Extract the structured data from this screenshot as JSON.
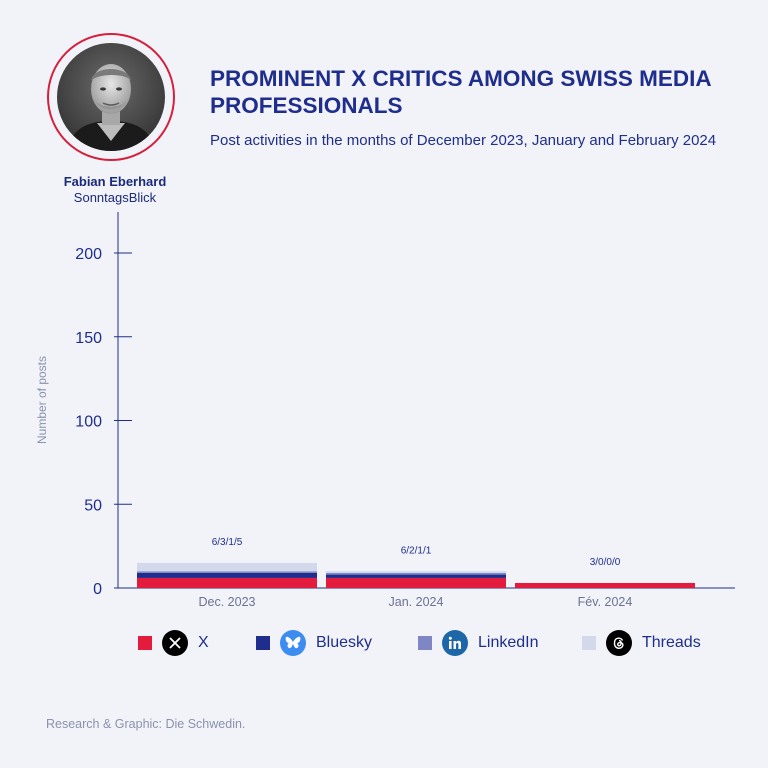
{
  "person": {
    "name": "Fabian Eberhard",
    "outlet": "SonntagsBlick"
  },
  "header": {
    "title": "Prominent X critics among Swiss media professionals",
    "subtitle": "Post activities in the months of December 2023, January and February 2024"
  },
  "chart_data": {
    "type": "bar",
    "stacked": true,
    "categories": [
      "Dec. 2023",
      "Jan. 2024",
      "Fév. 2024"
    ],
    "series": [
      {
        "name": "X",
        "values": [
          6,
          6,
          3
        ],
        "color": "#e31b3c"
      },
      {
        "name": "Bluesky",
        "values": [
          3,
          2,
          0
        ],
        "color": "#1f2e8c"
      },
      {
        "name": "LinkedIn",
        "values": [
          1,
          1,
          0
        ],
        "color": "#7e86c4"
      },
      {
        "name": "Threads",
        "values": [
          5,
          1,
          0
        ],
        "color": "#d4d8eb"
      }
    ],
    "data_labels": [
      "6/3/1/5",
      "6/2/1/1",
      "3/0/0/0"
    ],
    "ylabel": "Number of posts",
    "xlabel": "",
    "ylim": [
      0,
      225
    ],
    "yticks": [
      0,
      50,
      100,
      150,
      200
    ],
    "grid": false,
    "legend_position": "bottom"
  },
  "legend": {
    "items": [
      {
        "label": "X",
        "icon": "x-logo-icon",
        "color": "#e31b3c"
      },
      {
        "label": "Bluesky",
        "icon": "bluesky-butterfly-icon",
        "color": "#1f2e8c"
      },
      {
        "label": "LinkedIn",
        "icon": "linkedin-icon",
        "color": "#7e86c4"
      },
      {
        "label": "Threads",
        "icon": "threads-icon",
        "color": "#d4d8eb"
      }
    ]
  },
  "footer": {
    "credits": "Research & Graphic: Die Schwedin."
  }
}
